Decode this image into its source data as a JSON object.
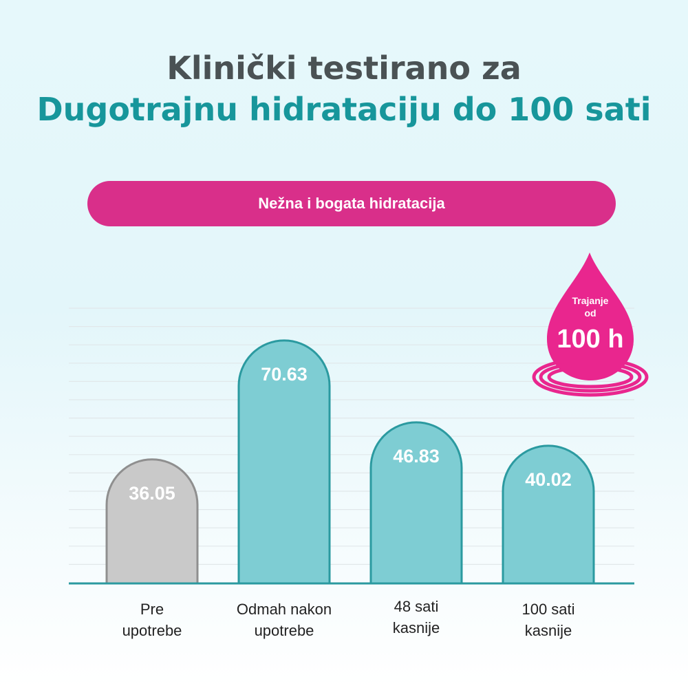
{
  "header": {
    "title_line1": "Klinički testirano za",
    "title_line2": "Dugotrajnu hidrataciju do 100 sati"
  },
  "banner": {
    "label": "Nežna i bogata hidratacija"
  },
  "badge": {
    "line1": "Trajanje\nod",
    "line2": "100 h",
    "icon": "water-drop-icon",
    "color": "#e9268e"
  },
  "colors": {
    "accent_teal": "#17969b",
    "bar_teal_fill": "#7ecdd3",
    "bar_teal_stroke": "#2b9aa0",
    "bar_gray_fill": "#c9c9c9",
    "bar_gray_stroke": "#8f8f8f",
    "banner_pink": "#d92f8a"
  },
  "chart_data": {
    "type": "bar",
    "categories": [
      "Pre\nupotrebe",
      "Odmah nakon\nupotrebe",
      "48 sati\nkasnije",
      "100 sati\nkasnije"
    ],
    "values": [
      36.05,
      70.63,
      46.83,
      40.02
    ],
    "value_labels": [
      "36.05",
      "70.63",
      "46.83",
      "40.02"
    ],
    "ylim": [
      0,
      80
    ],
    "grid": true,
    "legend": "none"
  }
}
